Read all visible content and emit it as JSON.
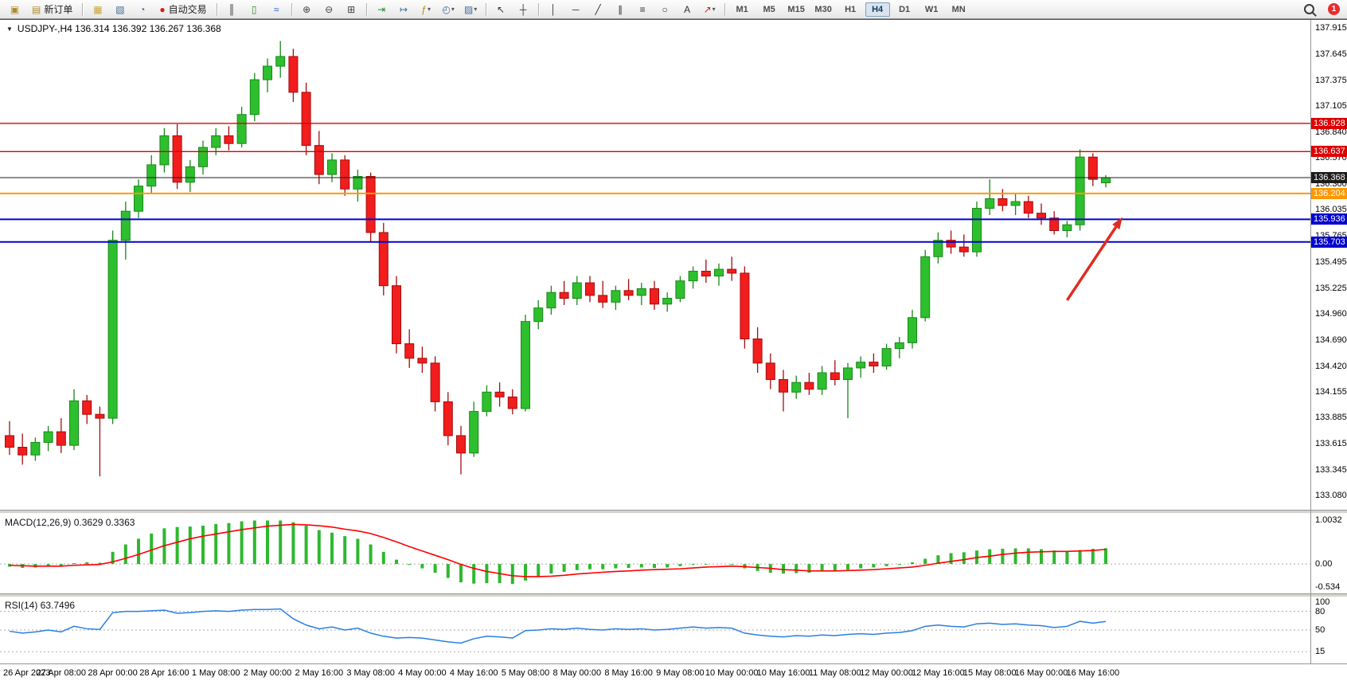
{
  "toolbar": {
    "buttons": [
      {
        "name": "new-chart-icon",
        "glyph": "▣",
        "color": "#b08a2e"
      },
      {
        "name": "new-order-button",
        "glyph": "▤",
        "label": "新订单",
        "color": "#b08a2e"
      },
      {
        "type": "sep"
      },
      {
        "name": "charts-icon",
        "glyph": "▦",
        "color": "#caa53a"
      },
      {
        "name": "profiles-icon",
        "glyph": "▧",
        "color": "#3f6c9a"
      },
      {
        "name": "alerts-icon",
        "glyph": "◔",
        "color": "#3f6c9a"
      },
      {
        "name": "autotrading-button",
        "glyph": "●",
        "label": "自动交易",
        "color": "#cf1f1f"
      },
      {
        "type": "sep"
      },
      {
        "name": "bar-chart-icon",
        "glyph": "║",
        "color": "#333333"
      },
      {
        "name": "candlestick-chart-icon",
        "glyph": "▯",
        "color": "#2a8f2a"
      },
      {
        "name": "line-chart-icon",
        "glyph": "≈",
        "color": "#2255bb"
      },
      {
        "type": "sep"
      },
      {
        "name": "zoom-in-icon",
        "glyph": "⊕",
        "color": "#444444"
      },
      {
        "name": "zoom-out-icon",
        "glyph": "⊖",
        "color": "#444444"
      },
      {
        "name": "tile-windows-icon",
        "glyph": "⊞",
        "color": "#444444"
      },
      {
        "type": "sep"
      },
      {
        "name": "auto-scroll-icon",
        "glyph": "⇥",
        "color": "#2a8f2a"
      },
      {
        "name": "chart-shift-icon",
        "glyph": "↦",
        "color": "#3f6c9a"
      },
      {
        "name": "indicators-icon",
        "glyph": "ƒ",
        "color": "#b8860b",
        "caret": true
      },
      {
        "name": "periods-icon",
        "glyph": "◴",
        "color": "#3f6c9a",
        "caret": true
      },
      {
        "name": "templates-icon",
        "glyph": "▨",
        "color": "#3f6c9a",
        "caret": true
      },
      {
        "type": "sep"
      },
      {
        "name": "cursor-icon",
        "glyph": "↖",
        "color": "#333333"
      },
      {
        "name": "crosshair-icon",
        "glyph": "┼",
        "color": "#333333"
      },
      {
        "type": "sep"
      },
      {
        "name": "vertical-line-icon",
        "glyph": "│",
        "color": "#333333"
      },
      {
        "name": "horizontal-line-icon",
        "glyph": "─",
        "color": "#333333"
      },
      {
        "name": "trendline-icon",
        "glyph": "╱",
        "color": "#333333"
      },
      {
        "name": "channel-icon",
        "glyph": "∥",
        "color": "#333333"
      },
      {
        "name": "fibonacci-icon",
        "glyph": "≡",
        "color": "#333333"
      },
      {
        "name": "shapes-icon",
        "glyph": "○",
        "color": "#333333"
      },
      {
        "name": "text-icon",
        "glyph": "A",
        "color": "#333333"
      },
      {
        "name": "arrows-icon",
        "glyph": "↗",
        "color": "#cf1f1f",
        "caret": true
      },
      {
        "type": "sep"
      }
    ],
    "timeframes": [
      "M1",
      "M5",
      "M15",
      "M30",
      "H1",
      "H4",
      "D1",
      "W1",
      "MN"
    ],
    "active_timeframe": "H4",
    "notification_count": "1"
  },
  "chart": {
    "title": "USDJPY-,H4 136.314 136.392 136.267 136.368"
  },
  "chart_data": {
    "type": "candlestick",
    "symbol": "USDJPY-",
    "period": "H4",
    "price_range": [
      132.95,
      137.99
    ],
    "grid": false,
    "legend_position": "none",
    "price_axis_ticks": [
      "137.915",
      "137.645",
      "137.375",
      "137.105",
      "136.840",
      "136.570",
      "136.300",
      "136.035",
      "135.765",
      "135.495",
      "135.225",
      "134.960",
      "134.690",
      "134.420",
      "134.155",
      "133.885",
      "133.615",
      "133.345",
      "133.080"
    ],
    "candles": [
      [
        133.7,
        133.85,
        133.5,
        133.58
      ],
      [
        133.58,
        133.72,
        133.4,
        133.5
      ],
      [
        133.5,
        133.68,
        133.44,
        133.63
      ],
      [
        133.63,
        133.8,
        133.54,
        133.74
      ],
      [
        133.74,
        133.88,
        133.52,
        133.6
      ],
      [
        133.6,
        134.18,
        133.55,
        134.06
      ],
      [
        134.06,
        134.12,
        133.82,
        133.92
      ],
      [
        133.92,
        134.0,
        133.28,
        133.88
      ],
      [
        133.88,
        135.82,
        133.82,
        135.72
      ],
      [
        135.72,
        136.12,
        135.52,
        136.02
      ],
      [
        136.02,
        136.35,
        135.95,
        136.28
      ],
      [
        136.28,
        136.6,
        136.2,
        136.5
      ],
      [
        136.5,
        136.88,
        136.42,
        136.8
      ],
      [
        136.8,
        136.92,
        136.25,
        136.32
      ],
      [
        136.32,
        136.55,
        136.22,
        136.48
      ],
      [
        136.48,
        136.75,
        136.4,
        136.68
      ],
      [
        136.68,
        136.88,
        136.6,
        136.8
      ],
      [
        136.8,
        136.9,
        136.65,
        136.72
      ],
      [
        136.72,
        137.1,
        136.68,
        137.02
      ],
      [
        137.02,
        137.45,
        136.95,
        137.38
      ],
      [
        137.38,
        137.6,
        137.25,
        137.52
      ],
      [
        137.52,
        137.78,
        137.4,
        137.62
      ],
      [
        137.62,
        137.7,
        137.15,
        137.25
      ],
      [
        137.25,
        137.35,
        136.6,
        136.7
      ],
      [
        136.7,
        136.85,
        136.3,
        136.4
      ],
      [
        136.4,
        136.62,
        136.32,
        136.55
      ],
      [
        136.55,
        136.6,
        136.18,
        136.25
      ],
      [
        136.25,
        136.45,
        136.12,
        136.38
      ],
      [
        136.38,
        136.42,
        135.7,
        135.8
      ],
      [
        135.8,
        135.9,
        135.15,
        135.25
      ],
      [
        135.25,
        135.35,
        134.55,
        134.65
      ],
      [
        134.65,
        134.8,
        134.4,
        134.5
      ],
      [
        134.5,
        134.62,
        134.35,
        134.45
      ],
      [
        134.45,
        134.52,
        133.95,
        134.05
      ],
      [
        134.05,
        134.15,
        133.6,
        133.7
      ],
      [
        133.7,
        133.8,
        133.3,
        133.52
      ],
      [
        133.52,
        134.05,
        133.48,
        133.95
      ],
      [
        133.95,
        134.22,
        133.9,
        134.15
      ],
      [
        134.15,
        134.25,
        134.0,
        134.1
      ],
      [
        134.1,
        134.18,
        133.92,
        133.98
      ],
      [
        133.98,
        134.95,
        133.95,
        134.88
      ],
      [
        134.88,
        135.1,
        134.8,
        135.02
      ],
      [
        135.02,
        135.25,
        134.95,
        135.18
      ],
      [
        135.18,
        135.3,
        135.05,
        135.12
      ],
      [
        135.12,
        135.35,
        135.05,
        135.28
      ],
      [
        135.28,
        135.35,
        135.08,
        135.15
      ],
      [
        135.15,
        135.3,
        135.02,
        135.08
      ],
      [
        135.08,
        135.25,
        135.0,
        135.2
      ],
      [
        135.2,
        135.32,
        135.1,
        135.15
      ],
      [
        135.15,
        135.28,
        135.05,
        135.22
      ],
      [
        135.22,
        135.3,
        135.0,
        135.06
      ],
      [
        135.06,
        135.18,
        134.98,
        135.12
      ],
      [
        135.12,
        135.35,
        135.08,
        135.3
      ],
      [
        135.3,
        135.45,
        135.22,
        135.4
      ],
      [
        135.4,
        135.52,
        135.28,
        135.35
      ],
      [
        135.35,
        135.48,
        135.25,
        135.42
      ],
      [
        135.42,
        135.55,
        135.3,
        135.38
      ],
      [
        135.38,
        135.45,
        134.6,
        134.7
      ],
      [
        134.7,
        134.82,
        134.35,
        134.45
      ],
      [
        134.45,
        134.55,
        134.18,
        134.28
      ],
      [
        134.28,
        134.38,
        133.95,
        134.15
      ],
      [
        134.15,
        134.32,
        134.08,
        134.25
      ],
      [
        134.25,
        134.35,
        134.12,
        134.18
      ],
      [
        134.18,
        134.42,
        134.12,
        134.35
      ],
      [
        134.35,
        134.48,
        134.22,
        134.28
      ],
      [
        134.28,
        134.45,
        133.88,
        134.4
      ],
      [
        134.4,
        134.52,
        134.3,
        134.46
      ],
      [
        134.46,
        134.55,
        134.35,
        134.42
      ],
      [
        134.42,
        134.65,
        134.38,
        134.6
      ],
      [
        134.6,
        134.72,
        134.5,
        134.66
      ],
      [
        134.66,
        135.0,
        134.6,
        134.92
      ],
      [
        134.92,
        135.62,
        134.88,
        135.55
      ],
      [
        135.55,
        135.8,
        135.48,
        135.72
      ],
      [
        135.72,
        135.82,
        135.58,
        135.65
      ],
      [
        135.65,
        135.78,
        135.55,
        135.6
      ],
      [
        135.6,
        136.12,
        135.55,
        136.05
      ],
      [
        136.05,
        136.35,
        135.98,
        136.15
      ],
      [
        136.15,
        136.25,
        136.02,
        136.08
      ],
      [
        136.08,
        136.2,
        135.98,
        136.12
      ],
      [
        136.12,
        136.18,
        135.95,
        136.0
      ],
      [
        136.0,
        136.1,
        135.88,
        135.95
      ],
      [
        135.95,
        136.02,
        135.78,
        135.82
      ],
      [
        135.82,
        135.92,
        135.75,
        135.88
      ],
      [
        135.88,
        136.66,
        135.82,
        136.58
      ],
      [
        136.58,
        136.62,
        136.28,
        136.35
      ],
      [
        136.314,
        136.392,
        136.267,
        136.368
      ]
    ],
    "time_labels": [
      "26 Apr 2023",
      "27 Apr 08:00",
      "28 Apr 00:00",
      "28 Apr 16:00",
      "1 May 08:00",
      "2 May 00:00",
      "2 May 16:00",
      "3 May 08:00",
      "4 May 00:00",
      "4 May 16:00",
      "5 May 08:00",
      "8 May 00:00",
      "8 May 16:00",
      "9 May 08:00",
      "10 May 00:00",
      "10 May 16:00",
      "11 May 08:00",
      "12 May 00:00",
      "12 May 16:00",
      "15 May 08:00",
      "16 May 00:00",
      "16 May 16:00"
    ],
    "candles_per_label": 4,
    "levels": [
      {
        "value": 136.928,
        "label": "136.928",
        "color": "#dd0000",
        "line_width": 1.4
      },
      {
        "value": 136.637,
        "label": "136.637",
        "color": "#dd0000",
        "line_width": 1.4
      },
      {
        "value": 136.368,
        "label": "136.368",
        "color": "#1c1c1c",
        "line_width": 1,
        "role": "current-price"
      },
      {
        "value": 136.204,
        "label": "136.204",
        "color": "#ff9800",
        "line_width": 2
      },
      {
        "value": 135.936,
        "label": "135.936",
        "color": "#0202cf",
        "line_width": 2
      },
      {
        "value": 135.703,
        "label": "135.703",
        "color": "#0202cf",
        "line_width": 2
      }
    ],
    "arrow": {
      "from_index": 82.0,
      "from_price": 135.1,
      "to_index": 86.3,
      "to_price": 135.96,
      "color": "#e22b20",
      "width": 3.5
    },
    "macd": {
      "label": "MACD(12,26,9) 0.3629 0.3363",
      "ticks": [
        "1.0032",
        "0.00",
        "-0.534"
      ],
      "tick_values": [
        1.0032,
        0,
        -0.534
      ],
      "hist_color": "#2eb82e",
      "signal_color": "#ff0000",
      "histogram": [
        -0.06,
        -0.09,
        -0.08,
        -0.05,
        -0.04,
        0.02,
        0.04,
        0.03,
        0.28,
        0.45,
        0.58,
        0.7,
        0.82,
        0.85,
        0.86,
        0.88,
        0.92,
        0.94,
        0.98,
        1.0,
        1.0,
        1.0,
        0.96,
        0.88,
        0.78,
        0.72,
        0.64,
        0.58,
        0.45,
        0.28,
        0.1,
        -0.02,
        -0.1,
        -0.2,
        -0.32,
        -0.42,
        -0.45,
        -0.44,
        -0.44,
        -0.46,
        -0.38,
        -0.3,
        -0.22,
        -0.18,
        -0.14,
        -0.12,
        -0.12,
        -0.1,
        -0.09,
        -0.08,
        -0.09,
        -0.08,
        -0.05,
        -0.02,
        -0.01,
        0.0,
        -0.01,
        -0.1,
        -0.16,
        -0.2,
        -0.22,
        -0.21,
        -0.2,
        -0.17,
        -0.15,
        -0.13,
        -0.1,
        -0.08,
        -0.05,
        -0.02,
        0.04,
        0.12,
        0.2,
        0.25,
        0.27,
        0.31,
        0.34,
        0.35,
        0.36,
        0.36,
        0.34,
        0.31,
        0.29,
        0.32,
        0.35,
        0.3629
      ],
      "signal": [
        -0.03,
        -0.04,
        -0.05,
        -0.05,
        -0.05,
        -0.03,
        -0.02,
        -0.01,
        0.05,
        0.13,
        0.22,
        0.32,
        0.42,
        0.5,
        0.58,
        0.64,
        0.69,
        0.74,
        0.79,
        0.83,
        0.87,
        0.89,
        0.91,
        0.9,
        0.88,
        0.85,
        0.8,
        0.76,
        0.7,
        0.61,
        0.51,
        0.4,
        0.3,
        0.2,
        0.1,
        -0.01,
        -0.1,
        -0.17,
        -0.22,
        -0.27,
        -0.29,
        -0.29,
        -0.28,
        -0.26,
        -0.23,
        -0.21,
        -0.19,
        -0.17,
        -0.16,
        -0.14,
        -0.13,
        -0.12,
        -0.11,
        -0.09,
        -0.07,
        -0.06,
        -0.05,
        -0.06,
        -0.08,
        -0.1,
        -0.13,
        -0.14,
        -0.16,
        -0.16,
        -0.16,
        -0.15,
        -0.14,
        -0.13,
        -0.11,
        -0.09,
        -0.07,
        -0.03,
        0.02,
        0.06,
        0.1,
        0.15,
        0.18,
        0.22,
        0.25,
        0.27,
        0.28,
        0.29,
        0.29,
        0.3,
        0.31,
        0.3363
      ]
    },
    "rsi": {
      "label": "RSI(14) 63.7496",
      "ticks": [
        "100",
        "80",
        "50",
        "15"
      ],
      "tick_values": [
        100,
        80,
        50,
        15
      ],
      "level_lines": [
        80,
        50,
        15
      ],
      "color": "#2a7fe0",
      "values": [
        48,
        45,
        47,
        50,
        47,
        56,
        52,
        51,
        78,
        80,
        80,
        81,
        82,
        77,
        78,
        80,
        81,
        80,
        82,
        83,
        83,
        84,
        68,
        58,
        52,
        55,
        50,
        53,
        45,
        40,
        37,
        38,
        37,
        34,
        31,
        29,
        36,
        40,
        39,
        37,
        49,
        50,
        52,
        51,
        53,
        51,
        50,
        52,
        51,
        52,
        50,
        51,
        53,
        55,
        53,
        54,
        53,
        45,
        42,
        40,
        39,
        41,
        40,
        42,
        41,
        43,
        44,
        43,
        45,
        46,
        49,
        56,
        58,
        56,
        55,
        60,
        61,
        59,
        60,
        58,
        57,
        54,
        56,
        64,
        61,
        63.7496
      ]
    },
    "colors": {
      "bull": "#2ebf2e",
      "bull_dark": "#178817",
      "bear": "#f21d1d",
      "bear_dark": "#a50d0d"
    }
  }
}
